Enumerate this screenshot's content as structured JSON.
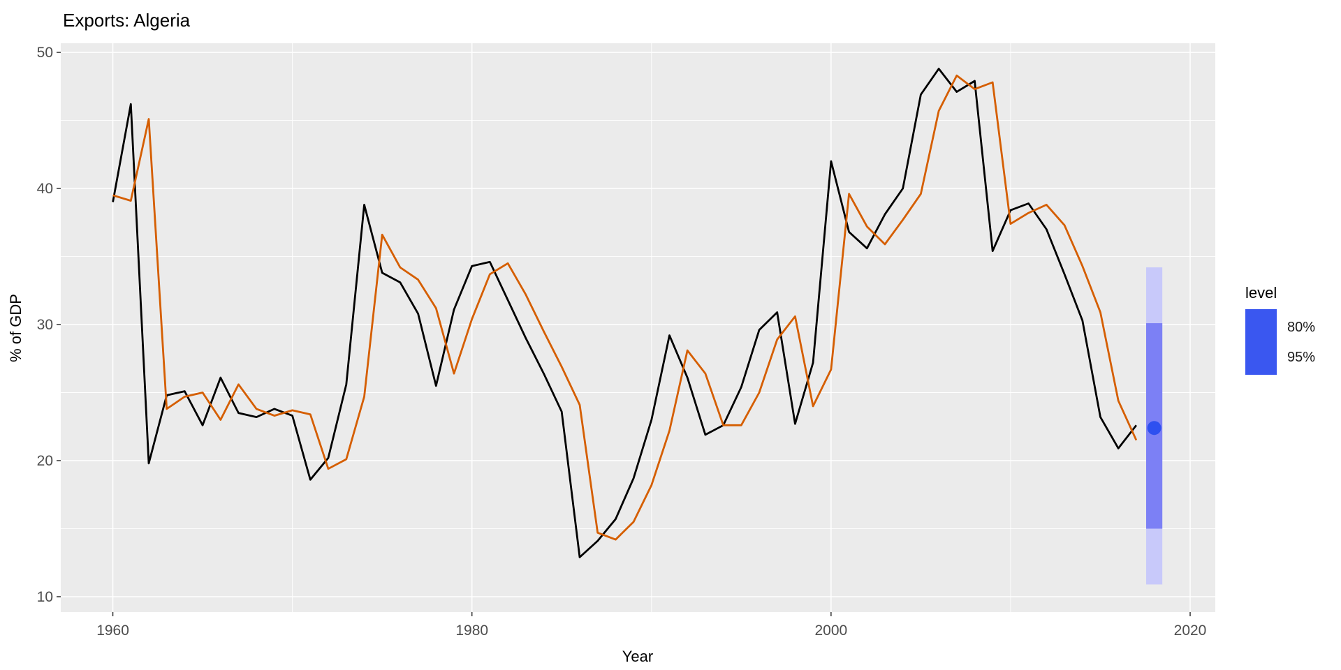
{
  "header": {
    "title": "Exports: Algeria"
  },
  "axes": {
    "x": {
      "title": "Year",
      "major_ticks": [
        1960,
        1980,
        2000,
        2020
      ],
      "major_tick_labels": [
        "1960",
        "1980",
        "2000",
        "2020"
      ],
      "minor_ticks": [
        1970,
        1990,
        2010
      ]
    },
    "y": {
      "title": "% of GDP",
      "major_ticks": [
        10,
        20,
        30,
        40,
        50
      ],
      "major_tick_labels": [
        "10",
        "20",
        "30",
        "40",
        "50"
      ],
      "minor_ticks": [
        15,
        25,
        35,
        45
      ]
    }
  },
  "legend": {
    "title": "level",
    "items": [
      {
        "label": "80%"
      },
      {
        "label": "95%"
      }
    ],
    "swatch_color": "#3A57F0"
  },
  "colors": {
    "panel_background": "#EBEBEB",
    "gridline": "#FFFFFF",
    "tick_text": "#4D4D4D",
    "tick_mark": "#333333",
    "data_line": "#000000",
    "fitted_line": "#D55E00",
    "level_80_fill": "#7C80F5",
    "level_95_fill": "#C8C9FA",
    "forecast_point": "#2E50F0"
  },
  "chart_data": {
    "type": "line",
    "title": "Exports: Algeria",
    "xlabel": "Year",
    "ylabel": "% of GDP",
    "xlim": [
      1957.1,
      2021.4
    ],
    "ylim": [
      8.87,
      50.67
    ],
    "grid": true,
    "legend_position": "right",
    "series": [
      {
        "name": "data",
        "color": "#000000",
        "start_year": 1960,
        "end_year": 2017,
        "frequency": "annual",
        "values": [
          39.0,
          46.2,
          19.8,
          24.8,
          25.1,
          22.6,
          26.1,
          23.5,
          23.2,
          23.8,
          23.3,
          18.6,
          20.2,
          25.6,
          38.8,
          33.8,
          33.1,
          30.8,
          25.5,
          31.1,
          34.3,
          34.6,
          31.8,
          29.0,
          26.4,
          23.6,
          12.9,
          14.1,
          15.7,
          18.7,
          23.0,
          29.2,
          26.1,
          21.9,
          22.6,
          25.4,
          29.6,
          30.9,
          22.7,
          27.2,
          42.0,
          36.8,
          35.6,
          38.1,
          40.0,
          46.9,
          48.8,
          47.1,
          47.9,
          35.4,
          38.4,
          38.9,
          37.0,
          33.7,
          30.3,
          23.2,
          20.9,
          22.6
        ]
      },
      {
        "name": "fitted",
        "color": "#D55E00",
        "start_year": 1960,
        "end_year": 2017,
        "frequency": "annual",
        "values": [
          39.5,
          39.1,
          45.1,
          23.8,
          24.7,
          25.0,
          23.0,
          25.6,
          23.8,
          23.3,
          23.7,
          23.4,
          19.4,
          20.1,
          24.7,
          36.6,
          34.2,
          33.3,
          31.2,
          26.4,
          30.4,
          33.7,
          34.5,
          32.2,
          29.5,
          26.9,
          24.1,
          14.7,
          14.2,
          15.5,
          18.2,
          22.2,
          28.1,
          26.4,
          22.6,
          22.6,
          25.0,
          28.9,
          30.6,
          24.0,
          26.7,
          39.6,
          37.2,
          35.9,
          37.7,
          39.6,
          45.7,
          48.3,
          47.3,
          47.8,
          37.4,
          38.2,
          38.8,
          37.3,
          34.3,
          30.9,
          24.4,
          21.5
        ]
      }
    ],
    "forecast": {
      "year": 2018,
      "mean": 22.4,
      "bar_width_years": 0.9,
      "intervals": [
        {
          "level": "95%",
          "lower": 10.9,
          "upper": 34.2,
          "color": "#C8C9FA"
        },
        {
          "level": "80%",
          "lower": 15.0,
          "upper": 30.1,
          "color": "#7C80F5"
        }
      ],
      "point_color": "#2E50F0"
    }
  }
}
